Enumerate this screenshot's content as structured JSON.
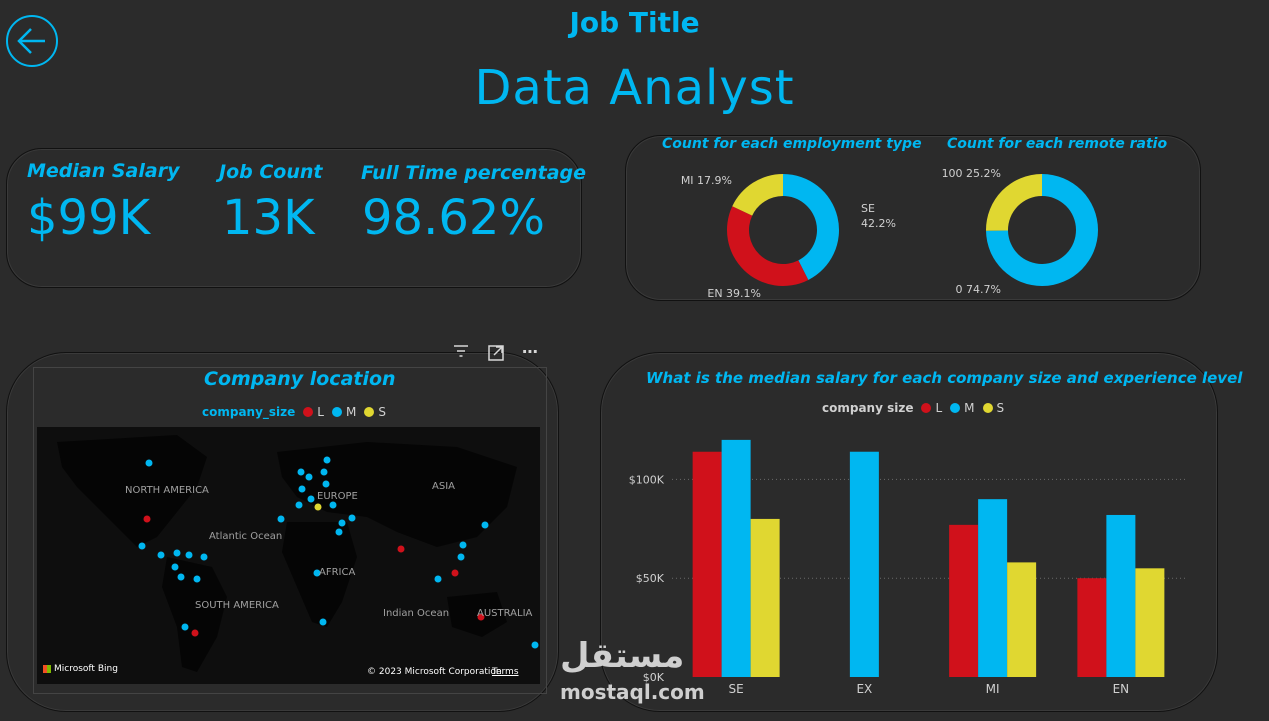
{
  "header": {
    "label": "Job Title",
    "title": "Data Analyst",
    "back_icon": "arrow-left-icon"
  },
  "kpis": [
    {
      "title": "Median Salary",
      "value": "$99K"
    },
    {
      "title": "Job Count",
      "value": "13K"
    },
    {
      "title": "Full Time percentage",
      "value": "98.62%"
    }
  ],
  "donuts": [
    {
      "title": "Count for each employment type",
      "slices": [
        {
          "name": "SE",
          "pct": 42.2,
          "label": "SE",
          "value_label": "42.2%",
          "color": "#00b7f1"
        },
        {
          "name": "EN",
          "pct": 39.1,
          "label": "EN 39.1%",
          "color": "#d0111b"
        },
        {
          "name": "MI",
          "pct": 17.9,
          "label": "MI 17.9%",
          "color": "#e0d731"
        }
      ]
    },
    {
      "title": "Count for each remote ratio",
      "slices": [
        {
          "name": "0",
          "pct": 74.7,
          "label": "0 74.7%",
          "color": "#00b7f1"
        },
        {
          "name": "100",
          "pct": 25.2,
          "label": "100 25.2%",
          "color": "#e0d731"
        }
      ]
    }
  ],
  "map": {
    "title": "Company location",
    "legend_title": "company_size",
    "legend": [
      {
        "name": "L",
        "color": "#d0111b"
      },
      {
        "name": "M",
        "color": "#00b7f1"
      },
      {
        "name": "S",
        "color": "#e0d731"
      }
    ],
    "labels": [
      "NORTH AMERICA",
      "EUROPE",
      "ASIA",
      "Atlantic Ocean",
      "AFRICA",
      "SOUTH AMERICA",
      "Indian Ocean",
      "AUSTRALIA"
    ],
    "bing": "Microsoft Bing",
    "copyright": "© 2023 Microsoft Corporation",
    "terms": "Terms",
    "toolbar_icons": [
      "filter-icon",
      "focus-mode-icon",
      "more-options-icon"
    ]
  },
  "chart_data": {
    "type": "bar",
    "title": "What is the median salary for each company size and experience level",
    "legend_title": "company size",
    "categories": [
      "SE",
      "EX",
      "MI",
      "EN"
    ],
    "series": [
      {
        "name": "L",
        "color": "#d0111b",
        "values": [
          114000,
          null,
          77000,
          50000
        ]
      },
      {
        "name": "M",
        "color": "#00b7f1",
        "values": [
          120000,
          114000,
          90000,
          82000
        ]
      },
      {
        "name": "S",
        "color": "#e0d731",
        "values": [
          80000,
          null,
          58000,
          55000
        ]
      }
    ],
    "yticks": [
      {
        "value": 0,
        "label": "$0K"
      },
      {
        "value": 50000,
        "label": "$50K"
      },
      {
        "value": 100000,
        "label": "$100K"
      }
    ],
    "ylim": [
      0,
      125000
    ],
    "grid": true,
    "legend_position": "top"
  },
  "watermark": {
    "arabic": "مستقل",
    "latin": "mostaql.com"
  }
}
